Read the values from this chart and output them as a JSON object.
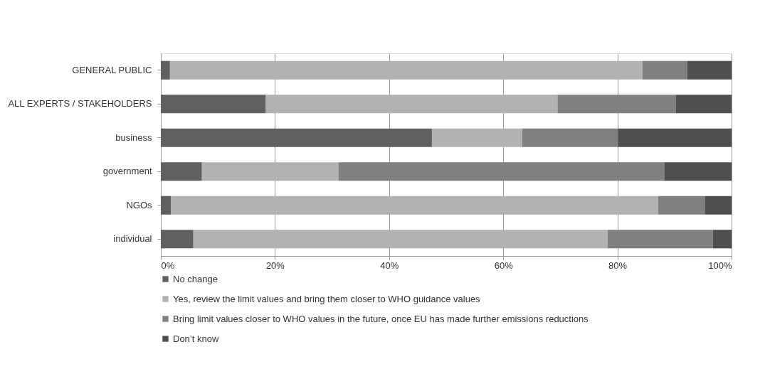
{
  "chart_data": {
    "type": "bar",
    "orientation": "horizontal",
    "stacked": true,
    "categories": [
      "GENERAL PUBLIC",
      "ALL EXPERTS / STAKEHOLDERS",
      "business",
      "government",
      "NGOs",
      "individual"
    ],
    "series": [
      {
        "name": "No change",
        "color": "#606060",
        "values": [
          1.6,
          18.4,
          47.5,
          7.2,
          1.8,
          5.7
        ]
      },
      {
        "name": "Yes, review the limit values and bring them closer to WHO guidance values",
        "color": "#b2b2b2",
        "values": [
          82.8,
          51.1,
          15.8,
          23.9,
          85.3,
          72.6
        ]
      },
      {
        "name": "Bring limit values closer to WHO values in the future, once EU has made further emissions reductions",
        "color": "#808080",
        "values": [
          7.8,
          20.7,
          16.8,
          57.1,
          8.2,
          18.4
        ]
      },
      {
        "name": "Don’t know",
        "color": "#4f4f4f",
        "values": [
          7.8,
          9.8,
          19.9,
          11.8,
          4.7,
          3.3
        ]
      }
    ],
    "xlim": [
      0,
      100
    ],
    "xticks": [
      {
        "value": 0,
        "label": "0%"
      },
      {
        "value": 20,
        "label": "20%"
      },
      {
        "value": 40,
        "label": "40%"
      },
      {
        "value": 60,
        "label": "60%"
      },
      {
        "value": 80,
        "label": "80%"
      },
      {
        "value": 100,
        "label": "100%"
      }
    ],
    "grid": "x",
    "legend": "bottom"
  }
}
